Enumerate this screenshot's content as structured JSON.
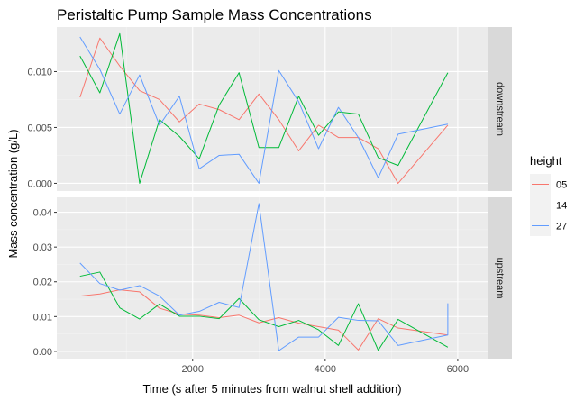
{
  "chart_data": {
    "type": "line",
    "title": "Peristaltic Pump Sample Mass Concentrations",
    "xlabel": "Time (s after 5 minutes from walnut shell addition)",
    "ylabel": "Mass concentration (g/L)",
    "x_ticks": [
      2000,
      4000,
      6000
    ],
    "x_tick_labels": [
      "2000",
      "4000",
      "6000"
    ],
    "xlim": [
      -50,
      6450
    ],
    "legend": {
      "title": "height",
      "position": "right"
    },
    "colors": {
      "05": "#F8766D",
      "14": "#00BA38",
      "27": "#619CFF"
    },
    "panels": [
      {
        "strip": "downstream",
        "ylim": [
          -0.00069,
          0.01399
        ],
        "y_ticks": [
          0.0,
          0.005,
          0.01
        ],
        "y_tick_labels": [
          "0.000",
          "0.005",
          "0.010"
        ],
        "series": [
          {
            "name": "05",
            "x": [
              300,
              600,
              900,
              1200,
              1500,
              1800,
              2100,
              2400,
              2700,
              3000,
              3300,
              3600,
              3900,
              4200,
              4500,
              4800,
              5100,
              5850
            ],
            "y": [
              0.0077,
              0.013,
              0.0105,
              0.0083,
              0.0075,
              0.0055,
              0.0071,
              0.0066,
              0.0057,
              0.008,
              0.0057,
              0.0029,
              0.0052,
              0.0041,
              0.0041,
              0.0031,
              0.0,
              0.0052
            ]
          },
          {
            "name": "14",
            "x": [
              300,
              600,
              900,
              1200,
              1500,
              1800,
              2100,
              2400,
              2700,
              3000,
              3300,
              3600,
              3900,
              4200,
              4500,
              4800,
              5100,
              5850
            ],
            "y": [
              0.0114,
              0.0081,
              0.0134,
              0.0,
              0.0057,
              0.0042,
              0.0022,
              0.007,
              0.0099,
              0.0032,
              0.0032,
              0.0078,
              0.0043,
              0.0064,
              0.0062,
              0.0023,
              0.0016,
              0.0099
            ]
          },
          {
            "name": "27",
            "x": [
              300,
              600,
              900,
              1200,
              1500,
              1800,
              2100,
              2400,
              2700,
              3000,
              3300,
              3600,
              3900,
              4200,
              4500,
              4800,
              5100,
              5850
            ],
            "y": [
              0.0131,
              0.0102,
              0.0062,
              0.0097,
              0.0052,
              0.0078,
              0.0013,
              0.0025,
              0.0026,
              0.0,
              0.0101,
              0.0073,
              0.0031,
              0.0068,
              0.0041,
              0.0005,
              0.0044,
              0.0053
            ]
          }
        ]
      },
      {
        "strip": "upstream",
        "ylim": [
          -0.0021,
          0.0443
        ],
        "y_ticks": [
          0.0,
          0.01,
          0.02,
          0.03,
          0.04
        ],
        "y_tick_labels": [
          "0.00",
          "0.01",
          "0.02",
          "0.03",
          "0.04"
        ],
        "series": [
          {
            "name": "05",
            "x": [
              300,
              600,
              900,
              1200,
              1500,
              1800,
              2100,
              2400,
              2700,
              3000,
              3300,
              3600,
              3900,
              4200,
              4500,
              4800,
              5100,
              5850
            ],
            "y": [
              0.0159,
              0.0165,
              0.0177,
              0.0171,
              0.0124,
              0.0107,
              0.0104,
              0.0097,
              0.0104,
              0.0082,
              0.0097,
              0.0081,
              0.0071,
              0.0061,
              0.0004,
              0.0094,
              0.0067,
              0.0047
            ]
          },
          {
            "name": "14",
            "x": [
              300,
              600,
              900,
              1200,
              1500,
              1800,
              2100,
              2400,
              2700,
              3000,
              3300,
              3600,
              3900,
              4200,
              4500,
              4800,
              5100,
              5850
            ],
            "y": [
              0.0216,
              0.0228,
              0.0125,
              0.0093,
              0.0136,
              0.0101,
              0.0101,
              0.0094,
              0.0152,
              0.0091,
              0.0071,
              0.0089,
              0.0062,
              0.0017,
              0.0137,
              0.0003,
              0.0092,
              0.0012
            ]
          },
          {
            "name": "27",
            "x": [
              300,
              600,
              900,
              1200,
              1500,
              1800,
              2100,
              2400,
              2700,
              3000,
              3300,
              3600,
              3900,
              4200,
              4500,
              4800,
              5100,
              5850,
              5850
            ],
            "y": [
              0.0254,
              0.0195,
              0.0176,
              0.0189,
              0.0159,
              0.0104,
              0.0115,
              0.0141,
              0.0126,
              0.0425,
              0.0002,
              0.0041,
              0.0041,
              0.0098,
              0.0089,
              0.0088,
              0.0017,
              0.0047,
              0.0138
            ]
          }
        ]
      }
    ]
  }
}
